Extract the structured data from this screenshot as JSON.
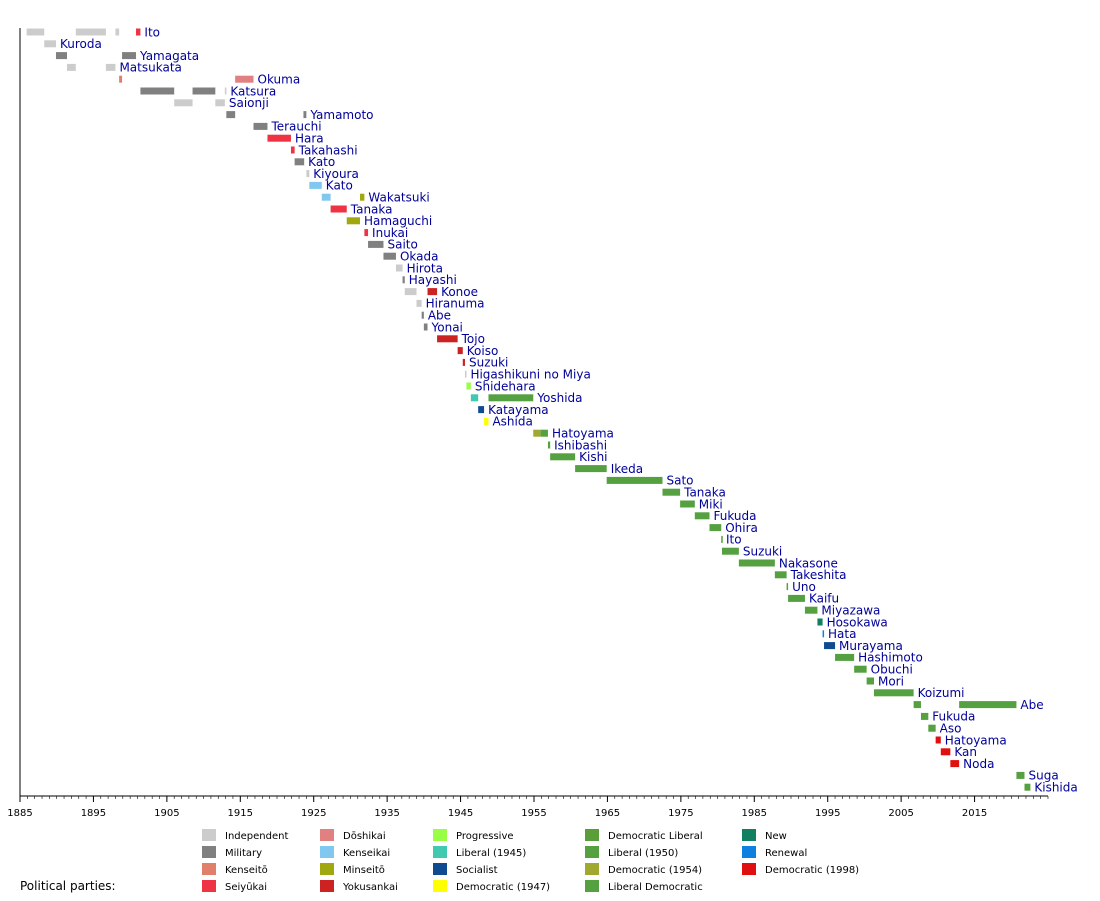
{
  "chart_data": {
    "type": "timeline",
    "legend_title": "Political parties:",
    "x_ticks": [
      1885,
      1895,
      1905,
      1915,
      1925,
      1935,
      1945,
      1955,
      1965,
      1975,
      1985,
      1995,
      2005,
      2015
    ],
    "xlim": [
      1885,
      2025
    ],
    "parties": [
      {
        "name": "Independent",
        "color": "#cccccc"
      },
      {
        "name": "Military",
        "color": "#808080"
      },
      {
        "name": "Kenseitō",
        "color": "#e0806a"
      },
      {
        "name": "Seiyūkai",
        "color": "#ee3344"
      },
      {
        "name": "Dōshikai",
        "color": "#e08080"
      },
      {
        "name": "Kenseikai",
        "color": "#80c8f0"
      },
      {
        "name": "Minseitō",
        "color": "#a0a810"
      },
      {
        "name": "Yokusankai",
        "color": "#cc2222"
      },
      {
        "name": "Progressive",
        "color": "#99ff44"
      },
      {
        "name": "Liberal (1945)",
        "color": "#40c8b0"
      },
      {
        "name": "Socialist",
        "color": "#104a90"
      },
      {
        "name": "Democratic (1947)",
        "color": "#ffff00"
      },
      {
        "name": "Democratic Liberal",
        "color": "#5a9e3a"
      },
      {
        "name": "Liberal (1950)",
        "color": "#55a040"
      },
      {
        "name": "Democratic (1954)",
        "color": "#a0a830"
      },
      {
        "name": "Liberal Democratic",
        "color": "#55a040"
      },
      {
        "name": "New",
        "color": "#108060"
      },
      {
        "name": "Renewal",
        "color": "#1080e0"
      },
      {
        "name": "Democratic (1998)",
        "color": "#e01010"
      }
    ],
    "rows": [
      {
        "label": "Ito",
        "terms": [
          [
            1885.9,
            1888.3,
            "Independent"
          ],
          [
            1892.6,
            1896.7,
            "Independent"
          ],
          [
            1898.0,
            1898.5,
            "Independent"
          ],
          [
            1900.8,
            1901.4,
            "Seiyūkai"
          ]
        ]
      },
      {
        "label": "Kuroda",
        "terms": [
          [
            1888.3,
            1889.9,
            "Independent"
          ]
        ]
      },
      {
        "label": "Yamagata",
        "terms": [
          [
            1889.9,
            1891.4,
            "Military"
          ],
          [
            1898.9,
            1900.8,
            "Military"
          ]
        ]
      },
      {
        "label": "Matsukata",
        "terms": [
          [
            1891.4,
            1892.6,
            "Independent"
          ],
          [
            1896.7,
            1898.0,
            "Independent"
          ]
        ]
      },
      {
        "label": "Okuma",
        "terms": [
          [
            1898.5,
            1898.9,
            "Kenseitō"
          ],
          [
            1914.3,
            1916.8,
            "Dōshikai"
          ]
        ]
      },
      {
        "label": "Katsura",
        "terms": [
          [
            1901.4,
            1906.0,
            "Military"
          ],
          [
            1908.5,
            1911.6,
            "Military"
          ],
          [
            1912.9,
            1913.1,
            "Independent"
          ]
        ]
      },
      {
        "label": "Saionji",
        "terms": [
          [
            1906.0,
            1908.5,
            "Independent"
          ],
          [
            1911.6,
            1912.9,
            "Independent"
          ]
        ]
      },
      {
        "label": "Yamamoto",
        "terms": [
          [
            1913.1,
            1914.3,
            "Military"
          ],
          [
            1923.6,
            1924.0,
            "Military"
          ]
        ]
      },
      {
        "label": "Terauchi",
        "terms": [
          [
            1916.8,
            1918.7,
            "Military"
          ]
        ]
      },
      {
        "label": "Hara",
        "terms": [
          [
            1918.7,
            1921.9,
            "Seiyūkai"
          ]
        ]
      },
      {
        "label": "Takahashi",
        "terms": [
          [
            1921.9,
            1922.4,
            "Seiyūkai"
          ]
        ]
      },
      {
        "label": "Kato",
        "terms": [
          [
            1922.4,
            1923.7,
            "Military"
          ]
        ]
      },
      {
        "label": "Kiyoura",
        "terms": [
          [
            1924.0,
            1924.4,
            "Independent"
          ]
        ]
      },
      {
        "label": "Kato",
        "terms": [
          [
            1924.4,
            1926.1,
            "Kenseikai"
          ]
        ]
      },
      {
        "label": "Wakatsuki",
        "terms": [
          [
            1926.1,
            1927.3,
            "Kenseikai"
          ],
          [
            1931.3,
            1931.9,
            "Minseitō"
          ]
        ]
      },
      {
        "label": "Tanaka",
        "terms": [
          [
            1927.3,
            1929.5,
            "Seiyūkai"
          ]
        ]
      },
      {
        "label": "Hamaguchi",
        "terms": [
          [
            1929.5,
            1931.3,
            "Minseitō"
          ]
        ]
      },
      {
        "label": "Inukai",
        "terms": [
          [
            1931.9,
            1932.4,
            "Seiyūkai"
          ]
        ]
      },
      {
        "label": "Saito",
        "terms": [
          [
            1932.4,
            1934.5,
            "Military"
          ]
        ]
      },
      {
        "label": "Okada",
        "terms": [
          [
            1934.5,
            1936.2,
            "Military"
          ]
        ]
      },
      {
        "label": "Hirota",
        "terms": [
          [
            1936.2,
            1937.1,
            "Independent"
          ]
        ]
      },
      {
        "label": "Hayashi",
        "terms": [
          [
            1937.1,
            1937.4,
            "Military"
          ]
        ]
      },
      {
        "label": "Konoe",
        "terms": [
          [
            1937.4,
            1939.0,
            "Independent"
          ],
          [
            1940.5,
            1941.8,
            "Yokusankai"
          ]
        ]
      },
      {
        "label": "Hiranuma",
        "terms": [
          [
            1939.0,
            1939.7,
            "Independent"
          ]
        ]
      },
      {
        "label": "Abe",
        "terms": [
          [
            1939.7,
            1940.0,
            "Military"
          ]
        ]
      },
      {
        "label": "Yonai",
        "terms": [
          [
            1940.0,
            1940.5,
            "Military"
          ]
        ]
      },
      {
        "label": "Tojo",
        "terms": [
          [
            1941.8,
            1944.6,
            "Yokusankai"
          ]
        ]
      },
      {
        "label": "Koiso",
        "terms": [
          [
            1944.6,
            1945.3,
            "Yokusankai"
          ]
        ]
      },
      {
        "label": "Suzuki",
        "terms": [
          [
            1945.3,
            1945.6,
            "Yokusankai"
          ]
        ]
      },
      {
        "label": "Higashikuni no Miya",
        "terms": [
          [
            1945.6,
            1945.8,
            "Independent"
          ]
        ]
      },
      {
        "label": "Shidehara",
        "terms": [
          [
            1945.8,
            1946.4,
            "Progressive"
          ]
        ]
      },
      {
        "label": "Yoshida",
        "terms": [
          [
            1946.4,
            1947.4,
            "Liberal (1945)"
          ],
          [
            1948.8,
            1954.9,
            "Liberal (1950)"
          ]
        ]
      },
      {
        "label": "Katayama",
        "terms": [
          [
            1947.4,
            1948.2,
            "Socialist"
          ]
        ]
      },
      {
        "label": "Ashida",
        "terms": [
          [
            1948.2,
            1948.8,
            "Democratic (1947)"
          ]
        ]
      },
      {
        "label": "Hatoyama",
        "terms": [
          [
            1954.9,
            1955.9,
            "Democratic (1954)"
          ],
          [
            1955.9,
            1956.9,
            "Liberal Democratic"
          ]
        ]
      },
      {
        "label": "Ishibashi",
        "terms": [
          [
            1956.9,
            1957.2,
            "Liberal Democratic"
          ]
        ]
      },
      {
        "label": "Kishi",
        "terms": [
          [
            1957.2,
            1960.6,
            "Liberal Democratic"
          ]
        ]
      },
      {
        "label": "Ikeda",
        "terms": [
          [
            1960.6,
            1964.9,
            "Liberal Democratic"
          ]
        ]
      },
      {
        "label": "Sato",
        "terms": [
          [
            1964.9,
            1972.5,
            "Liberal Democratic"
          ]
        ]
      },
      {
        "label": "Tanaka",
        "terms": [
          [
            1972.5,
            1974.9,
            "Liberal Democratic"
          ]
        ]
      },
      {
        "label": "Miki",
        "terms": [
          [
            1974.9,
            1976.9,
            "Liberal Democratic"
          ]
        ]
      },
      {
        "label": "Fukuda",
        "terms": [
          [
            1976.9,
            1978.9,
            "Liberal Democratic"
          ]
        ]
      },
      {
        "label": "Ohira",
        "terms": [
          [
            1978.9,
            1980.5,
            "Liberal Democratic"
          ]
        ]
      },
      {
        "label": "Ito",
        "terms": [
          [
            1980.5,
            1980.6,
            "Liberal Democratic"
          ]
        ]
      },
      {
        "label": "Suzuki",
        "terms": [
          [
            1980.6,
            1982.9,
            "Liberal Democratic"
          ]
        ]
      },
      {
        "label": "Nakasone",
        "terms": [
          [
            1982.9,
            1987.8,
            "Liberal Democratic"
          ]
        ]
      },
      {
        "label": "Takeshita",
        "terms": [
          [
            1987.8,
            1989.4,
            "Liberal Democratic"
          ]
        ]
      },
      {
        "label": "Uno",
        "terms": [
          [
            1989.4,
            1989.6,
            "Liberal Democratic"
          ]
        ]
      },
      {
        "label": "Kaifu",
        "terms": [
          [
            1989.6,
            1991.9,
            "Liberal Democratic"
          ]
        ]
      },
      {
        "label": "Miyazawa",
        "terms": [
          [
            1991.9,
            1993.6,
            "Liberal Democratic"
          ]
        ]
      },
      {
        "label": "Hosokawa",
        "terms": [
          [
            1993.6,
            1994.3,
            "New"
          ]
        ]
      },
      {
        "label": "Hata",
        "terms": [
          [
            1994.3,
            1994.5,
            "Renewal"
          ]
        ]
      },
      {
        "label": "Murayama",
        "terms": [
          [
            1994.5,
            1996.0,
            "Socialist"
          ]
        ]
      },
      {
        "label": "Hashimoto",
        "terms": [
          [
            1996.0,
            1998.6,
            "Liberal Democratic"
          ]
        ]
      },
      {
        "label": "Obuchi",
        "terms": [
          [
            1998.6,
            2000.3,
            "Liberal Democratic"
          ]
        ]
      },
      {
        "label": "Mori",
        "terms": [
          [
            2000.3,
            2001.3,
            "Liberal Democratic"
          ]
        ]
      },
      {
        "label": "Koizumi",
        "terms": [
          [
            2001.3,
            2006.7,
            "Liberal Democratic"
          ]
        ]
      },
      {
        "label": "Abe",
        "terms": [
          [
            2006.7,
            2007.7,
            "Liberal Democratic"
          ],
          [
            2012.9,
            2020.7,
            "Liberal Democratic"
          ]
        ]
      },
      {
        "label": "Fukuda",
        "terms": [
          [
            2007.7,
            2008.7,
            "Liberal Democratic"
          ]
        ]
      },
      {
        "label": "Aso",
        "terms": [
          [
            2008.7,
            2009.7,
            "Liberal Democratic"
          ]
        ]
      },
      {
        "label": "Hatoyama",
        "terms": [
          [
            2009.7,
            2010.4,
            "Democratic (1998)"
          ]
        ]
      },
      {
        "label": "Kan",
        "terms": [
          [
            2010.4,
            2011.7,
            "Democratic (1998)"
          ]
        ]
      },
      {
        "label": "Noda",
        "terms": [
          [
            2011.7,
            2012.9,
            "Democratic (1998)"
          ]
        ]
      },
      {
        "label": "Suga",
        "terms": [
          [
            2020.7,
            2021.8,
            "Liberal Democratic"
          ]
        ]
      },
      {
        "label": "Kishida",
        "terms": [
          [
            2021.8,
            2022.6,
            "Liberal Democratic"
          ]
        ]
      }
    ]
  }
}
